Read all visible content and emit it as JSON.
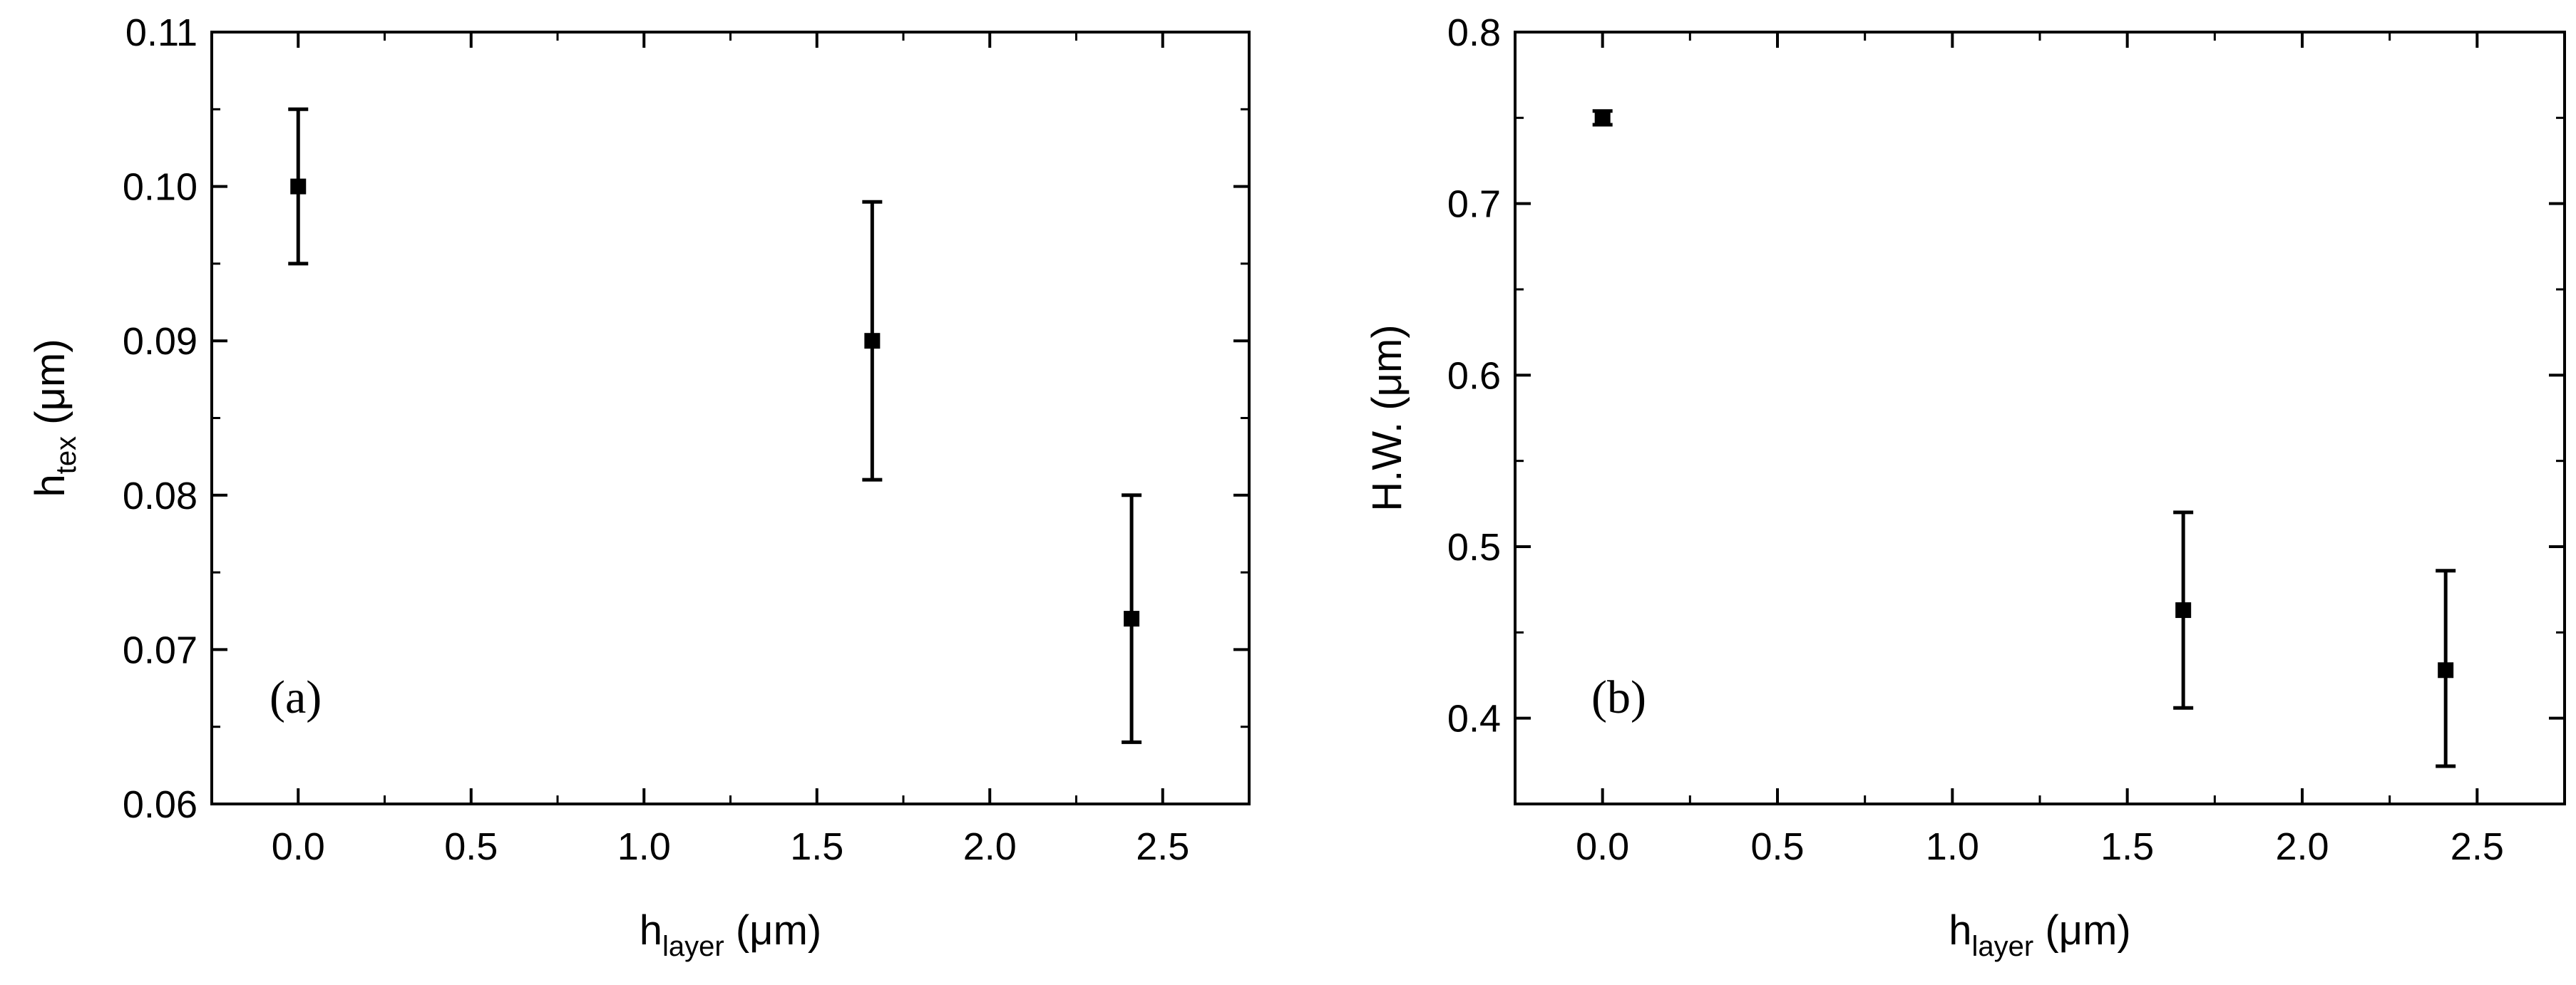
{
  "figure": {
    "panels": [
      "panel-a",
      "panel-b"
    ]
  },
  "chart_data": [
    {
      "type": "scatter",
      "panel_label": "(a)",
      "xlabel": {
        "main": "h",
        "sub": "layer",
        "unit": " (μm)"
      },
      "ylabel": {
        "main": "h",
        "sub": "tex",
        "unit": " (μm)"
      },
      "xlim": [
        -0.25,
        2.75
      ],
      "ylim": [
        0.06,
        0.11
      ],
      "xticks": [
        0.0,
        0.5,
        1.0,
        1.5,
        2.0,
        2.5
      ],
      "xtick_labels": [
        "0.0",
        "0.5",
        "1.0",
        "1.5",
        "2.0",
        "2.5"
      ],
      "yticks": [
        0.06,
        0.07,
        0.08,
        0.09,
        0.1,
        0.11
      ],
      "ytick_labels": [
        "0.06",
        "0.07",
        "0.08",
        "0.09",
        "0.10",
        "0.11"
      ],
      "x_minor_step": 0.25,
      "y_minor_step": 0.005,
      "grid": false,
      "marker": "square",
      "color": "#000000",
      "points": [
        {
          "x": 0.0,
          "y": 0.1,
          "err_low": 0.095,
          "err_high": 0.105
        },
        {
          "x": 1.66,
          "y": 0.09,
          "err_low": 0.081,
          "err_high": 0.099
        },
        {
          "x": 2.41,
          "y": 0.072,
          "err_low": 0.064,
          "err_high": 0.08
        }
      ]
    },
    {
      "type": "scatter",
      "panel_label": "(b)",
      "xlabel": {
        "main": "h",
        "sub": "layer",
        "unit": " (μm)"
      },
      "ylabel": {
        "main": "H.W. (μm)",
        "sub": "",
        "unit": ""
      },
      "xlim": [
        -0.25,
        2.75
      ],
      "ylim": [
        0.35,
        0.8
      ],
      "xticks": [
        0.0,
        0.5,
        1.0,
        1.5,
        2.0,
        2.5
      ],
      "xtick_labels": [
        "0.0",
        "0.5",
        "1.0",
        "1.5",
        "2.0",
        "2.5"
      ],
      "yticks": [
        0.4,
        0.5,
        0.6,
        0.7,
        0.8
      ],
      "ytick_labels": [
        "0.4",
        "0.5",
        "0.6",
        "0.7",
        "0.8"
      ],
      "x_minor_step": 0.25,
      "y_minor_step": 0.05,
      "grid": false,
      "marker": "square",
      "color": "#000000",
      "points": [
        {
          "x": 0.0,
          "y": 0.75,
          "err_low": 0.746,
          "err_high": 0.754
        },
        {
          "x": 1.66,
          "y": 0.463,
          "err_low": 0.406,
          "err_high": 0.52
        },
        {
          "x": 2.41,
          "y": 0.428,
          "err_low": 0.372,
          "err_high": 0.486
        }
      ]
    }
  ]
}
